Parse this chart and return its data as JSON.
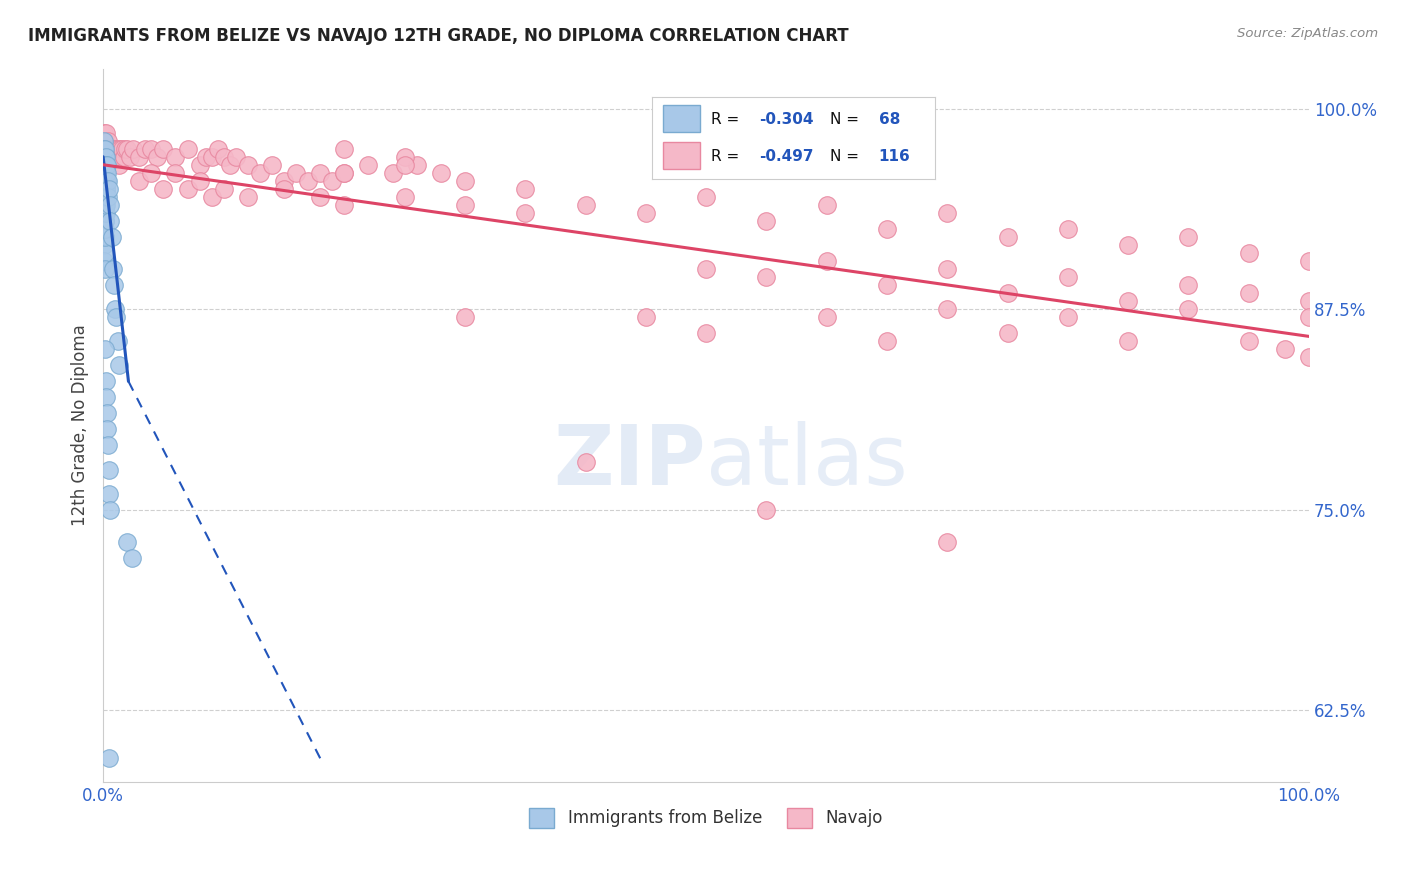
{
  "title": "IMMIGRANTS FROM BELIZE VS NAVAJO 12TH GRADE, NO DIPLOMA CORRELATION CHART",
  "source": "Source: ZipAtlas.com",
  "ylabel": "12th Grade, No Diploma",
  "legend_label_blue": "Immigrants from Belize",
  "legend_label_pink": "Navajo",
  "watermark": "ZIPatlas",
  "xlim": [
    0,
    1.0
  ],
  "ylim": [
    0.58,
    1.025
  ],
  "yticks": [
    0.625,
    0.75,
    0.875,
    1.0
  ],
  "ytick_labels": [
    "62.5%",
    "75.0%",
    "87.5%",
    "100.0%"
  ],
  "xticks": [
    0.0,
    0.25,
    0.5,
    0.75,
    1.0
  ],
  "xtick_labels": [
    "0.0%",
    "",
    "",
    "",
    "100.0%"
  ],
  "grid_color": "#d0d0d0",
  "background_color": "#ffffff",
  "blue_color": "#a8c8e8",
  "blue_edge": "#7aaad0",
  "pink_color": "#f5b8c8",
  "pink_edge": "#e888a0",
  "blue_line_color": "#2255bb",
  "pink_line_color": "#dd4466",
  "blue_scatter": [
    [
      0.0008,
      0.98
    ],
    [
      0.0008,
      0.97
    ],
    [
      0.001,
      0.975
    ],
    [
      0.001,
      0.965
    ],
    [
      0.001,
      0.955
    ],
    [
      0.001,
      0.945
    ],
    [
      0.001,
      0.935
    ],
    [
      0.001,
      0.925
    ],
    [
      0.001,
      0.915
    ],
    [
      0.001,
      0.905
    ],
    [
      0.0012,
      0.96
    ],
    [
      0.0012,
      0.95
    ],
    [
      0.0012,
      0.94
    ],
    [
      0.0012,
      0.93
    ],
    [
      0.0012,
      0.92
    ],
    [
      0.0012,
      0.91
    ],
    [
      0.0012,
      0.9
    ],
    [
      0.0014,
      0.97
    ],
    [
      0.0014,
      0.96
    ],
    [
      0.0014,
      0.95
    ],
    [
      0.0014,
      0.94
    ],
    [
      0.0014,
      0.93
    ],
    [
      0.0014,
      0.92
    ],
    [
      0.0016,
      0.965
    ],
    [
      0.0016,
      0.955
    ],
    [
      0.0016,
      0.945
    ],
    [
      0.0016,
      0.935
    ],
    [
      0.0016,
      0.925
    ],
    [
      0.0018,
      0.975
    ],
    [
      0.0018,
      0.965
    ],
    [
      0.0018,
      0.95
    ],
    [
      0.0018,
      0.94
    ],
    [
      0.002,
      0.97
    ],
    [
      0.002,
      0.955
    ],
    [
      0.002,
      0.945
    ],
    [
      0.002,
      0.935
    ],
    [
      0.0022,
      0.965
    ],
    [
      0.0022,
      0.95
    ],
    [
      0.0022,
      0.94
    ],
    [
      0.0025,
      0.96
    ],
    [
      0.0025,
      0.95
    ],
    [
      0.003,
      0.965
    ],
    [
      0.003,
      0.955
    ],
    [
      0.0035,
      0.96
    ],
    [
      0.004,
      0.955
    ],
    [
      0.004,
      0.945
    ],
    [
      0.005,
      0.95
    ],
    [
      0.0055,
      0.94
    ],
    [
      0.006,
      0.93
    ],
    [
      0.007,
      0.92
    ],
    [
      0.008,
      0.9
    ],
    [
      0.009,
      0.89
    ],
    [
      0.01,
      0.875
    ],
    [
      0.011,
      0.87
    ],
    [
      0.012,
      0.855
    ],
    [
      0.013,
      0.84
    ],
    [
      0.0015,
      0.85
    ],
    [
      0.002,
      0.83
    ],
    [
      0.0025,
      0.82
    ],
    [
      0.003,
      0.81
    ],
    [
      0.0035,
      0.8
    ],
    [
      0.004,
      0.79
    ],
    [
      0.0045,
      0.775
    ],
    [
      0.005,
      0.76
    ],
    [
      0.0055,
      0.75
    ],
    [
      0.02,
      0.73
    ],
    [
      0.024,
      0.72
    ],
    [
      0.005,
      0.595
    ]
  ],
  "pink_scatter": [
    [
      0.001,
      0.985
    ],
    [
      0.0015,
      0.98
    ],
    [
      0.002,
      0.985
    ],
    [
      0.002,
      0.975
    ],
    [
      0.003,
      0.975
    ],
    [
      0.004,
      0.98
    ],
    [
      0.005,
      0.975
    ],
    [
      0.006,
      0.97
    ],
    [
      0.007,
      0.975
    ],
    [
      0.008,
      0.97
    ],
    [
      0.009,
      0.975
    ],
    [
      0.01,
      0.975
    ],
    [
      0.011,
      0.97
    ],
    [
      0.012,
      0.975
    ],
    [
      0.013,
      0.965
    ],
    [
      0.014,
      0.975
    ],
    [
      0.015,
      0.97
    ],
    [
      0.016,
      0.975
    ],
    [
      0.017,
      0.97
    ],
    [
      0.018,
      0.975
    ],
    [
      0.02,
      0.975
    ],
    [
      0.022,
      0.97
    ],
    [
      0.025,
      0.975
    ],
    [
      0.03,
      0.97
    ],
    [
      0.035,
      0.975
    ],
    [
      0.04,
      0.975
    ],
    [
      0.045,
      0.97
    ],
    [
      0.05,
      0.975
    ],
    [
      0.06,
      0.97
    ],
    [
      0.07,
      0.975
    ],
    [
      0.08,
      0.965
    ],
    [
      0.085,
      0.97
    ],
    [
      0.09,
      0.97
    ],
    [
      0.095,
      0.975
    ],
    [
      0.1,
      0.97
    ],
    [
      0.105,
      0.965
    ],
    [
      0.11,
      0.97
    ],
    [
      0.12,
      0.965
    ],
    [
      0.13,
      0.96
    ],
    [
      0.14,
      0.965
    ],
    [
      0.15,
      0.955
    ],
    [
      0.16,
      0.96
    ],
    [
      0.17,
      0.955
    ],
    [
      0.18,
      0.96
    ],
    [
      0.19,
      0.955
    ],
    [
      0.2,
      0.96
    ],
    [
      0.22,
      0.965
    ],
    [
      0.24,
      0.96
    ],
    [
      0.26,
      0.965
    ],
    [
      0.28,
      0.96
    ],
    [
      0.3,
      0.955
    ],
    [
      0.06,
      0.96
    ],
    [
      0.07,
      0.95
    ],
    [
      0.08,
      0.955
    ],
    [
      0.09,
      0.945
    ],
    [
      0.1,
      0.95
    ],
    [
      0.12,
      0.945
    ],
    [
      0.15,
      0.95
    ],
    [
      0.18,
      0.945
    ],
    [
      0.2,
      0.94
    ],
    [
      0.25,
      0.945
    ],
    [
      0.3,
      0.94
    ],
    [
      0.35,
      0.935
    ],
    [
      0.03,
      0.955
    ],
    [
      0.04,
      0.96
    ],
    [
      0.05,
      0.95
    ],
    [
      0.35,
      0.95
    ],
    [
      0.4,
      0.94
    ],
    [
      0.45,
      0.935
    ],
    [
      0.5,
      0.945
    ],
    [
      0.55,
      0.93
    ],
    [
      0.6,
      0.94
    ],
    [
      0.65,
      0.925
    ],
    [
      0.7,
      0.935
    ],
    [
      0.75,
      0.92
    ],
    [
      0.8,
      0.925
    ],
    [
      0.85,
      0.915
    ],
    [
      0.9,
      0.92
    ],
    [
      0.95,
      0.91
    ],
    [
      1.0,
      0.905
    ],
    [
      0.5,
      0.9
    ],
    [
      0.55,
      0.895
    ],
    [
      0.6,
      0.905
    ],
    [
      0.65,
      0.89
    ],
    [
      0.7,
      0.9
    ],
    [
      0.75,
      0.885
    ],
    [
      0.8,
      0.895
    ],
    [
      0.85,
      0.88
    ],
    [
      0.9,
      0.89
    ],
    [
      0.95,
      0.885
    ],
    [
      1.0,
      0.88
    ],
    [
      0.6,
      0.87
    ],
    [
      0.7,
      0.875
    ],
    [
      0.8,
      0.87
    ],
    [
      0.9,
      0.875
    ],
    [
      1.0,
      0.87
    ],
    [
      0.4,
      0.78
    ],
    [
      0.55,
      0.75
    ],
    [
      0.7,
      0.73
    ],
    [
      0.3,
      0.87
    ],
    [
      0.45,
      0.87
    ],
    [
      0.5,
      0.86
    ],
    [
      0.65,
      0.855
    ],
    [
      0.75,
      0.86
    ],
    [
      0.85,
      0.855
    ],
    [
      0.95,
      0.855
    ],
    [
      0.98,
      0.85
    ],
    [
      1.0,
      0.845
    ],
    [
      0.2,
      0.96
    ],
    [
      0.25,
      0.97
    ],
    [
      0.2,
      0.975
    ],
    [
      0.25,
      0.965
    ]
  ],
  "blue_trendline_solid": [
    [
      0.0,
      0.97
    ],
    [
      0.021,
      0.83
    ]
  ],
  "blue_trendline_dashed": [
    [
      0.021,
      0.83
    ],
    [
      0.18,
      0.595
    ]
  ],
  "pink_trendline": [
    [
      0.0,
      0.965
    ],
    [
      1.0,
      0.858
    ]
  ]
}
